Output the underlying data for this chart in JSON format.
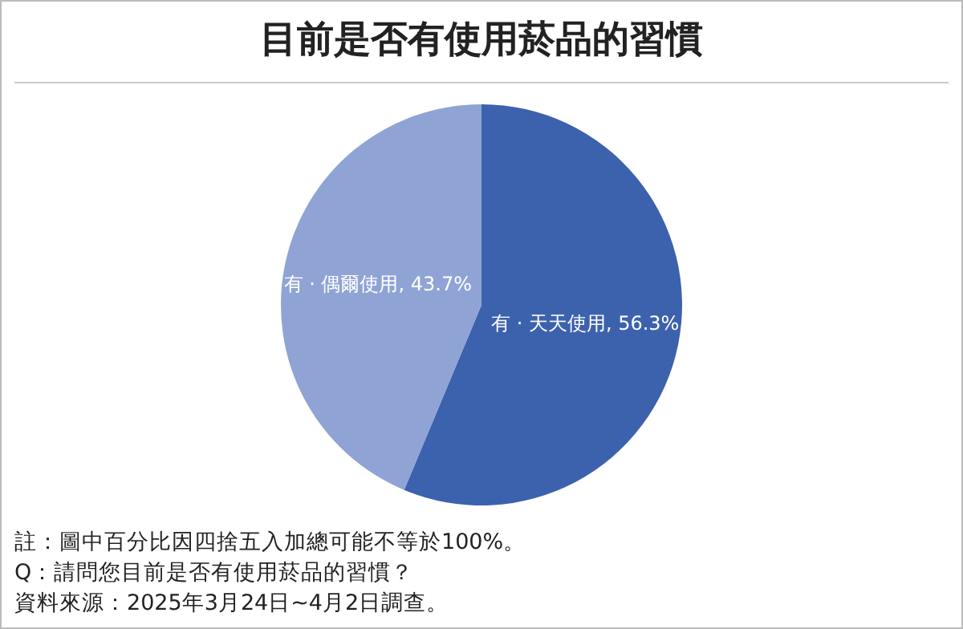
{
  "chart_data": {
    "type": "pie",
    "title": "目前是否有使用菸品的習慣",
    "categories": [
      "有 · 天天使用",
      "有 · 偶爾使用"
    ],
    "values": [
      56.3,
      43.7
    ],
    "colors": [
      "#3d62ad",
      "#8fa3d5"
    ],
    "value_labels": [
      "56.3%",
      "43.7%"
    ],
    "legend": false,
    "annotations": [
      "註：圖中百分比因四捨五入加總可能不等於100%。",
      "Q：請問您目前是否有使用菸品的習慣？",
      "資料來源：2025年3月24日~4月2日調查。"
    ]
  }
}
